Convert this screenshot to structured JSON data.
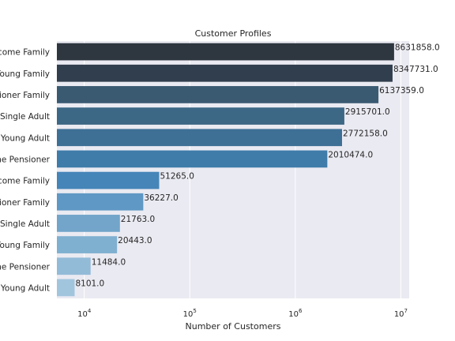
{
  "chart_data": {
    "type": "bar",
    "orientation": "horizontal",
    "title": "Customer Profiles",
    "xlabel": "Number of Customers",
    "ylabel": "",
    "xscale": "log",
    "xlim": [
      5500,
      12000000
    ],
    "x_ticks": [
      10000,
      100000,
      1000000,
      10000000
    ],
    "x_tick_labels": [
      {
        "base": "10",
        "exp": "4"
      },
      {
        "base": "10",
        "exp": "5"
      },
      {
        "base": "10",
        "exp": "6"
      },
      {
        "base": "10",
        "exp": "7"
      }
    ],
    "grid": true,
    "background": "#eaeaf2",
    "categories": [
      "come Family",
      "Young Family",
      "sioner Family",
      "e Single Adult",
      "e Young Adult",
      "me Pensioner",
      "come Family",
      "sioner Family",
      "Single Adult",
      "Young Family",
      "me Pensioner",
      "e Young Adult"
    ],
    "values": [
      8631858.0,
      8347731.0,
      6137359.0,
      2915701.0,
      2772158.0,
      2010474.0,
      51265.0,
      36227.0,
      21763.0,
      20443.0,
      11484.0,
      8101.0
    ],
    "value_labels": [
      "8631858.0",
      "8347731.0",
      "6137359.0",
      "2915701.0",
      "2772158.0",
      "2010474.0",
      "51265.0",
      "36227.0",
      "21763.0",
      "20443.0",
      "11484.0",
      "8101.0"
    ],
    "colors": [
      "#2e3640",
      "#313e4e",
      "#3a5a72",
      "#3d6885",
      "#3e7096",
      "#3f7caa",
      "#4585b8",
      "#5f98c4",
      "#72a5c9",
      "#80b0d0",
      "#92bbd8",
      "#a2c5de"
    ]
  }
}
